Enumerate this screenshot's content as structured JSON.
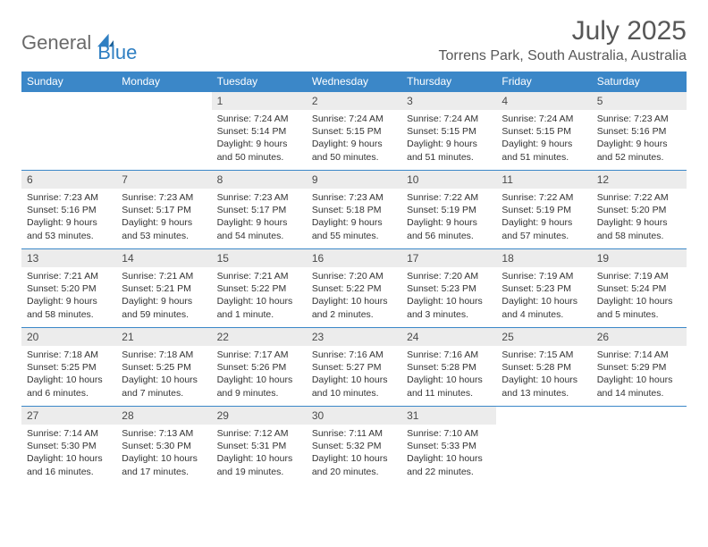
{
  "logo": {
    "part1": "General",
    "part2": "Blue"
  },
  "title": "July 2025",
  "location": "Torrens Park, South Australia, Australia",
  "colors": {
    "header_bg": "#3b87c8",
    "header_text": "#ffffff",
    "daynum_bg": "#ececec",
    "border": "#3b87c8",
    "logo_gray": "#6a6a6a",
    "logo_blue": "#2f7fc2",
    "title_color": "#575757"
  },
  "weekdays": [
    "Sunday",
    "Monday",
    "Tuesday",
    "Wednesday",
    "Thursday",
    "Friday",
    "Saturday"
  ],
  "weeks": [
    [
      {
        "empty": true
      },
      {
        "empty": true
      },
      {
        "n": "1",
        "sr": "7:24 AM",
        "ss": "5:14 PM",
        "dl": "9 hours and 50 minutes."
      },
      {
        "n": "2",
        "sr": "7:24 AM",
        "ss": "5:15 PM",
        "dl": "9 hours and 50 minutes."
      },
      {
        "n": "3",
        "sr": "7:24 AM",
        "ss": "5:15 PM",
        "dl": "9 hours and 51 minutes."
      },
      {
        "n": "4",
        "sr": "7:24 AM",
        "ss": "5:15 PM",
        "dl": "9 hours and 51 minutes."
      },
      {
        "n": "5",
        "sr": "7:23 AM",
        "ss": "5:16 PM",
        "dl": "9 hours and 52 minutes."
      }
    ],
    [
      {
        "n": "6",
        "sr": "7:23 AM",
        "ss": "5:16 PM",
        "dl": "9 hours and 53 minutes."
      },
      {
        "n": "7",
        "sr": "7:23 AM",
        "ss": "5:17 PM",
        "dl": "9 hours and 53 minutes."
      },
      {
        "n": "8",
        "sr": "7:23 AM",
        "ss": "5:17 PM",
        "dl": "9 hours and 54 minutes."
      },
      {
        "n": "9",
        "sr": "7:23 AM",
        "ss": "5:18 PM",
        "dl": "9 hours and 55 minutes."
      },
      {
        "n": "10",
        "sr": "7:22 AM",
        "ss": "5:19 PM",
        "dl": "9 hours and 56 minutes."
      },
      {
        "n": "11",
        "sr": "7:22 AM",
        "ss": "5:19 PM",
        "dl": "9 hours and 57 minutes."
      },
      {
        "n": "12",
        "sr": "7:22 AM",
        "ss": "5:20 PM",
        "dl": "9 hours and 58 minutes."
      }
    ],
    [
      {
        "n": "13",
        "sr": "7:21 AM",
        "ss": "5:20 PM",
        "dl": "9 hours and 58 minutes."
      },
      {
        "n": "14",
        "sr": "7:21 AM",
        "ss": "5:21 PM",
        "dl": "9 hours and 59 minutes."
      },
      {
        "n": "15",
        "sr": "7:21 AM",
        "ss": "5:22 PM",
        "dl": "10 hours and 1 minute."
      },
      {
        "n": "16",
        "sr": "7:20 AM",
        "ss": "5:22 PM",
        "dl": "10 hours and 2 minutes."
      },
      {
        "n": "17",
        "sr": "7:20 AM",
        "ss": "5:23 PM",
        "dl": "10 hours and 3 minutes."
      },
      {
        "n": "18",
        "sr": "7:19 AM",
        "ss": "5:23 PM",
        "dl": "10 hours and 4 minutes."
      },
      {
        "n": "19",
        "sr": "7:19 AM",
        "ss": "5:24 PM",
        "dl": "10 hours and 5 minutes."
      }
    ],
    [
      {
        "n": "20",
        "sr": "7:18 AM",
        "ss": "5:25 PM",
        "dl": "10 hours and 6 minutes."
      },
      {
        "n": "21",
        "sr": "7:18 AM",
        "ss": "5:25 PM",
        "dl": "10 hours and 7 minutes."
      },
      {
        "n": "22",
        "sr": "7:17 AM",
        "ss": "5:26 PM",
        "dl": "10 hours and 9 minutes."
      },
      {
        "n": "23",
        "sr": "7:16 AM",
        "ss": "5:27 PM",
        "dl": "10 hours and 10 minutes."
      },
      {
        "n": "24",
        "sr": "7:16 AM",
        "ss": "5:28 PM",
        "dl": "10 hours and 11 minutes."
      },
      {
        "n": "25",
        "sr": "7:15 AM",
        "ss": "5:28 PM",
        "dl": "10 hours and 13 minutes."
      },
      {
        "n": "26",
        "sr": "7:14 AM",
        "ss": "5:29 PM",
        "dl": "10 hours and 14 minutes."
      }
    ],
    [
      {
        "n": "27",
        "sr": "7:14 AM",
        "ss": "5:30 PM",
        "dl": "10 hours and 16 minutes."
      },
      {
        "n": "28",
        "sr": "7:13 AM",
        "ss": "5:30 PM",
        "dl": "10 hours and 17 minutes."
      },
      {
        "n": "29",
        "sr": "7:12 AM",
        "ss": "5:31 PM",
        "dl": "10 hours and 19 minutes."
      },
      {
        "n": "30",
        "sr": "7:11 AM",
        "ss": "5:32 PM",
        "dl": "10 hours and 20 minutes."
      },
      {
        "n": "31",
        "sr": "7:10 AM",
        "ss": "5:33 PM",
        "dl": "10 hours and 22 minutes."
      },
      {
        "empty": true
      },
      {
        "empty": true
      }
    ]
  ],
  "labels": {
    "sunrise": "Sunrise:",
    "sunset": "Sunset:",
    "daylight": "Daylight:"
  }
}
